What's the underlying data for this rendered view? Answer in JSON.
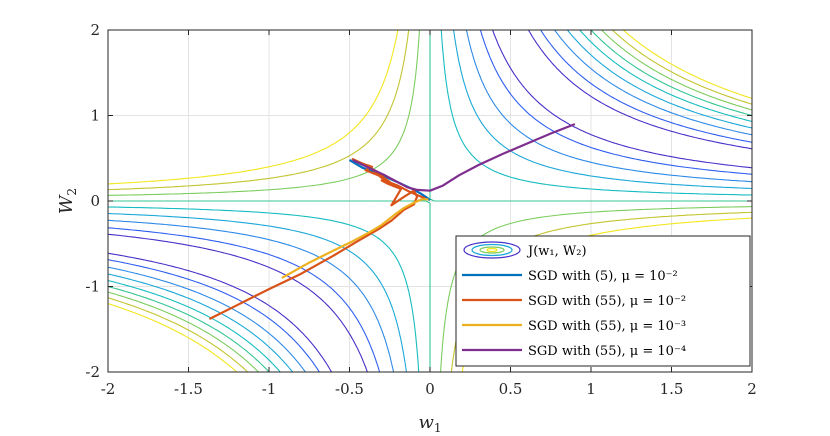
{
  "chart_data": {
    "type": "line",
    "title": "",
    "xlabel": "w",
    "xlabel_sub": "1",
    "ylabel": "W",
    "ylabel_sub": "2",
    "xlim": [
      -2,
      2
    ],
    "ylim": [
      -2,
      2
    ],
    "grid": true,
    "legend_position": "bottom-right",
    "x_ticks": [
      {
        "v": -2,
        "label": "-2"
      },
      {
        "v": -1.5,
        "label": "-1.5"
      },
      {
        "v": -1,
        "label": "-1"
      },
      {
        "v": -0.5,
        "label": "-0.5"
      },
      {
        "v": 0,
        "label": "0"
      },
      {
        "v": 0.5,
        "label": "0.5"
      },
      {
        "v": 1,
        "label": "1"
      },
      {
        "v": 1.5,
        "label": "1.5"
      },
      {
        "v": 2,
        "label": "2"
      }
    ],
    "y_ticks": [
      {
        "v": -2,
        "label": "-2"
      },
      {
        "v": -1,
        "label": "-1"
      },
      {
        "v": 0,
        "label": "0"
      },
      {
        "v": 1,
        "label": "1"
      },
      {
        "v": 2,
        "label": "2"
      }
    ],
    "contour": {
      "label": "J(w1, W2)",
      "levels": [
        0.025,
        0.07,
        0.15,
        0.25,
        0.37,
        0.5,
        0.64,
        0.8,
        0.98
      ],
      "colors": [
        "#4531c8",
        "#2f5ff0",
        "#2e8ae6",
        "#1aa7d8",
        "#16bcc0",
        "#35c592",
        "#7ccc5e",
        "#c2c430",
        "#f3e61d"
      ]
    },
    "series": [
      {
        "name": "SGD with (5), μ = 10⁻²",
        "color": "#0072bd",
        "x": [
          -0.5,
          -0.42,
          -0.3,
          -0.2,
          -0.12,
          -0.06,
          -0.02,
          0
        ],
        "y": [
          0.48,
          0.39,
          0.3,
          0.22,
          0.15,
          0.09,
          0.04,
          0.01
        ]
      },
      {
        "name": "SGD with (55), μ = 10⁻²",
        "color": "#d95319",
        "x": [
          -1.37,
          -1.2,
          -1.0,
          -0.8,
          -0.6,
          -0.45,
          -0.32,
          -0.24,
          -0.16,
          -0.1,
          -0.08,
          -0.1,
          -0.16,
          -0.24,
          -0.18,
          -0.26,
          -0.3,
          -0.22,
          -0.35,
          -0.29,
          -0.42,
          -0.36,
          -0.48,
          -0.41,
          -0.36,
          -0.4,
          -0.32,
          -0.28,
          -0.2,
          -0.14,
          -0.08,
          -0.03
        ],
        "y": [
          -1.38,
          -1.22,
          -1.03,
          -0.85,
          -0.64,
          -0.47,
          -0.33,
          -0.23,
          -0.1,
          -0.04,
          0.05,
          0.12,
          0.05,
          -0.05,
          0.14,
          0.2,
          0.24,
          0.18,
          0.36,
          0.3,
          0.44,
          0.38,
          0.49,
          0.43,
          0.4,
          0.36,
          0.3,
          0.24,
          0.18,
          0.12,
          0.07,
          0.03
        ]
      },
      {
        "name": "SGD with (55), μ = 10⁻³",
        "color": "#edb120",
        "x": [
          -0.92,
          -0.75,
          -0.6,
          -0.48,
          -0.37,
          -0.3,
          -0.22,
          -0.16,
          -0.1,
          -0.05,
          -0.01
        ],
        "y": [
          -0.9,
          -0.72,
          -0.58,
          -0.47,
          -0.36,
          -0.28,
          -0.16,
          -0.08,
          -0.02,
          0.02,
          0.02
        ]
      },
      {
        "name": "SGD with (55), μ = 10⁻⁴",
        "color": "#7e2f8e",
        "x": [
          -0.48,
          -0.38,
          -0.28,
          -0.2,
          -0.14,
          -0.08,
          0.0,
          0.08,
          0.18,
          0.3,
          0.45,
          0.6,
          0.75,
          0.9
        ],
        "y": [
          0.48,
          0.39,
          0.3,
          0.22,
          0.16,
          0.13,
          0.12,
          0.18,
          0.3,
          0.42,
          0.55,
          0.67,
          0.79,
          0.9
        ]
      }
    ],
    "legend": [
      {
        "label": "J(w₁, W₂)",
        "kind": "contour"
      },
      {
        "label": "SGD with (5), μ = 10⁻²",
        "kind": "line",
        "color": "#0072bd"
      },
      {
        "label": "SGD with (55), μ = 10⁻²",
        "kind": "line",
        "color": "#d95319"
      },
      {
        "label": "SGD with (55), μ = 10⁻³",
        "kind": "line",
        "color": "#edb120"
      },
      {
        "label": "SGD with (55), μ = 10⁻⁴",
        "kind": "line",
        "color": "#7e2f8e"
      }
    ]
  }
}
